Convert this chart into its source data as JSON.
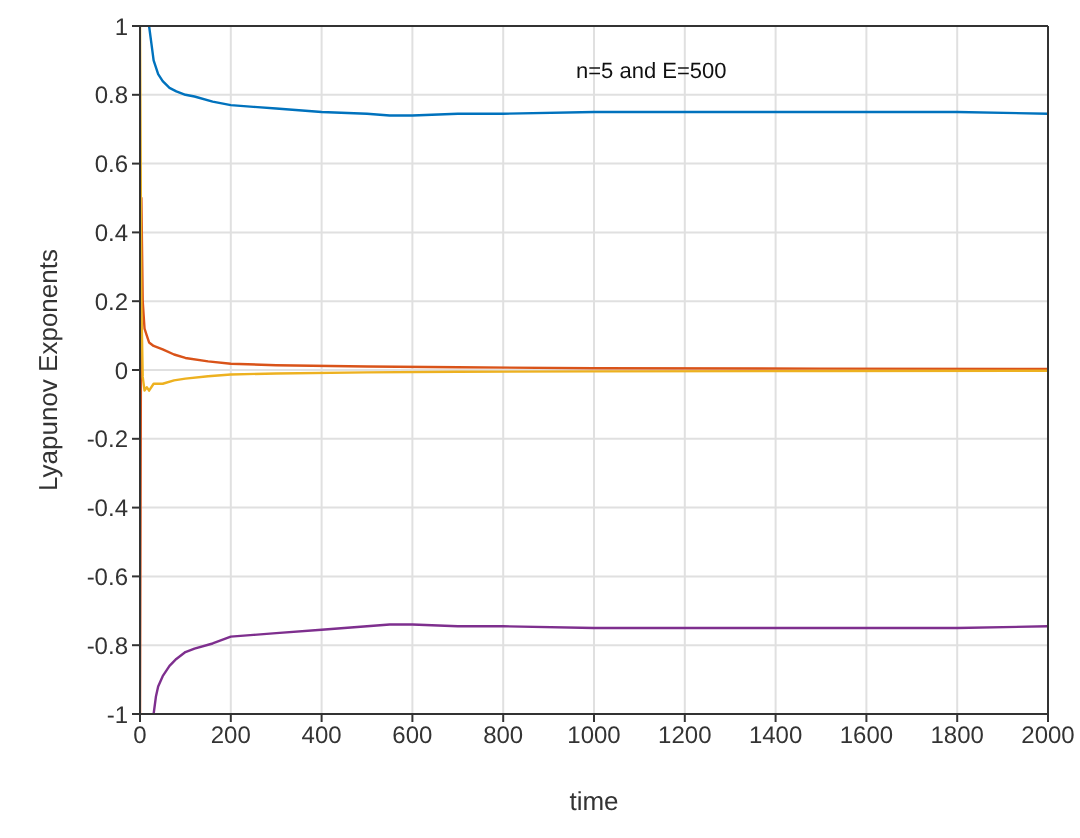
{
  "chart_data": {
    "type": "line",
    "xlabel": "time",
    "ylabel": "Lyapunov Exponents",
    "annotations": [
      "n=5 and E=500"
    ],
    "xlim": [
      0,
      2000
    ],
    "ylim": [
      -1,
      1
    ],
    "xticks": [
      0,
      200,
      400,
      600,
      800,
      1000,
      1200,
      1400,
      1600,
      1800,
      2000
    ],
    "yticks": [
      -1,
      -0.8,
      -0.6,
      -0.4,
      -0.2,
      0,
      0.2,
      0.4,
      0.6,
      0.8,
      1
    ],
    "grid": true,
    "legend": false,
    "marker": "none",
    "line_style": "solid",
    "series": [
      {
        "color": "#0072bd",
        "x": [
          20,
          25,
          30,
          40,
          50,
          65,
          80,
          100,
          120,
          160,
          200,
          250,
          300,
          400,
          500,
          550,
          600,
          700,
          800,
          1000,
          1200,
          1400,
          1600,
          1800,
          2000
        ],
        "values": [
          1,
          0.95,
          0.9,
          0.86,
          0.84,
          0.82,
          0.81,
          0.8,
          0.795,
          0.78,
          0.77,
          0.765,
          0.76,
          0.75,
          0.745,
          0.74,
          0.74,
          0.745,
          0.745,
          0.75,
          0.75,
          0.75,
          0.75,
          0.75,
          0.745
        ]
      },
      {
        "color": "#d95319",
        "x": [
          0,
          3,
          6,
          10,
          15,
          20,
          30,
          50,
          75,
          100,
          150,
          200,
          300,
          500,
          700,
          1000,
          1500,
          2000
        ],
        "values": [
          -1,
          0.5,
          0.2,
          0.12,
          0.1,
          0.08,
          0.07,
          0.06,
          0.045,
          0.035,
          0.025,
          0.018,
          0.014,
          0.01,
          0.008,
          0.005,
          0.004,
          0.003
        ]
      },
      {
        "color": "#edb120",
        "x": [
          0,
          3,
          6,
          10,
          15,
          20,
          30,
          50,
          75,
          100,
          150,
          200,
          300,
          500,
          700,
          1000,
          1500,
          2000
        ],
        "values": [
          1,
          0.2,
          -0.02,
          -0.06,
          -0.05,
          -0.06,
          -0.04,
          -0.04,
          -0.03,
          -0.025,
          -0.018,
          -0.013,
          -0.01,
          -0.007,
          -0.005,
          -0.004,
          -0.003,
          -0.002
        ]
      },
      {
        "color": "#7e2f8e",
        "x": [
          30,
          35,
          40,
          50,
          65,
          80,
          100,
          120,
          160,
          200,
          250,
          300,
          400,
          500,
          550,
          600,
          700,
          800,
          1000,
          1200,
          1400,
          1600,
          1800,
          2000
        ],
        "values": [
          -1,
          -0.95,
          -0.92,
          -0.89,
          -0.86,
          -0.84,
          -0.82,
          -0.81,
          -0.795,
          -0.775,
          -0.77,
          -0.765,
          -0.755,
          -0.745,
          -0.74,
          -0.74,
          -0.745,
          -0.745,
          -0.75,
          -0.75,
          -0.75,
          -0.75,
          -0.75,
          -0.745
        ]
      }
    ]
  }
}
